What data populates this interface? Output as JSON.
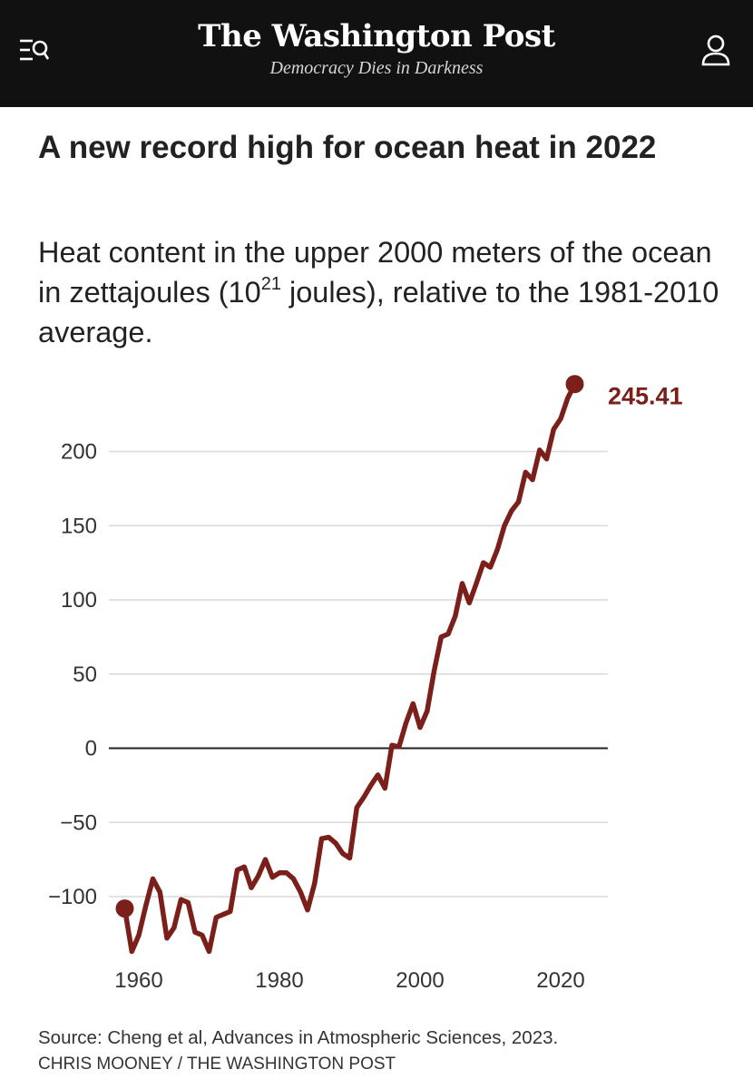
{
  "header": {
    "logo": "The Washington Post",
    "tagline": "Democracy Dies in Darkness",
    "background": "#111111"
  },
  "icons": {
    "menu": "menu-search-icon",
    "account": "user-icon"
  },
  "article": {
    "headline": "A new record high for ocean heat in 2022",
    "subhead_prefix": "Heat content in the upper 2000 meters of the ocean in zettajoules (10",
    "subhead_sup": "21",
    "subhead_suffix": " joules), relative to the 1981-2010 average.",
    "source": "Source: Cheng et al, Advances in Atmospheric Sciences, 2023.",
    "credit": "CHRIS MOONEY / THE WASHINGTON POST"
  },
  "chart_data": {
    "type": "line",
    "title": "A new record high for ocean heat in 2022",
    "subtitle": "Heat content in the upper 2000 meters of the ocean in zettajoules (10²¹ joules), relative to the 1981-2010 average.",
    "xlabel": "",
    "ylabel": "",
    "xlim": [
      1958,
      2022
    ],
    "ylim": [
      -140,
      250
    ],
    "x_ticks": [
      1960,
      1980,
      2000,
      2020
    ],
    "x_tick_labels": [
      "1960",
      "1980",
      "2000",
      "2020"
    ],
    "y_ticks": [
      200,
      150,
      100,
      50,
      0,
      -50,
      -100
    ],
    "y_tick_labels": [
      "200",
      "150",
      "100",
      "50",
      "0",
      "−50",
      "−100"
    ],
    "grid": true,
    "zero_line": true,
    "line_color": "#7b1f1a",
    "endpoint_marker": true,
    "annotation": "245.41",
    "series": [
      {
        "x": [
          1958,
          1959,
          1960,
          1961,
          1962,
          1963,
          1964,
          1965,
          1966,
          1967,
          1968,
          1969,
          1970,
          1971,
          1972,
          1973,
          1974,
          1975,
          1976,
          1977,
          1978,
          1979,
          1980,
          1981,
          1982,
          1983,
          1984,
          1985,
          1986,
          1987,
          1988,
          1989,
          1990,
          1991,
          1992,
          1993,
          1994,
          1995,
          1996,
          1997,
          1998,
          1999,
          2000,
          2001,
          2002,
          2003,
          2004,
          2005,
          2006,
          2007,
          2008,
          2009,
          2010,
          2011,
          2012,
          2013,
          2014,
          2015,
          2016,
          2017,
          2018,
          2019,
          2020,
          2021,
          2022
        ],
        "values": [
          -108,
          -137,
          -126,
          -106,
          -88,
          -97,
          -128,
          -121,
          -102,
          -104,
          -124,
          -126,
          -137,
          -114,
          -112,
          -110,
          -82,
          -80,
          -94,
          -86,
          -75,
          -87,
          -84,
          -84,
          -88,
          -97,
          -109,
          -91,
          -61,
          -60,
          -64,
          -71,
          -74,
          -40,
          -33,
          -25,
          -18,
          -27,
          2,
          1,
          17,
          30,
          14,
          25,
          52,
          75,
          77,
          89,
          111,
          98,
          111,
          125,
          122,
          134,
          150,
          160,
          166,
          186,
          181,
          201,
          195,
          215,
          222,
          236,
          245.41
        ]
      }
    ]
  }
}
